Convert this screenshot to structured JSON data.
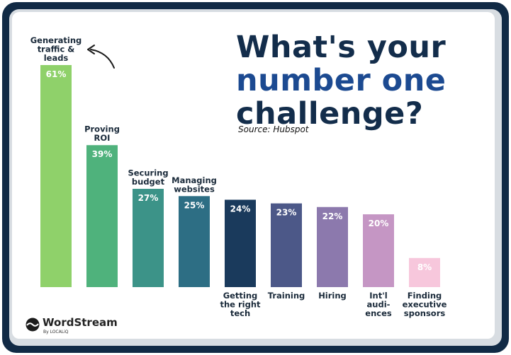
{
  "header": {
    "title_line1": "What's your",
    "title_line2": "number one",
    "title_line3": "challenge?",
    "source": "Source: Hubspot"
  },
  "brand": {
    "name": "WordStream",
    "sub": "By LOCALiQ"
  },
  "colors": {
    "title_dark": "#132d4b",
    "title_blue": "#1c4a91",
    "frame": "#112a45",
    "label_text": "#1a2a3a"
  },
  "chart_data": {
    "type": "bar",
    "title": "What's your number one challenge?",
    "source": "Source: Hubspot",
    "ylim": [
      0,
      61
    ],
    "grid": false,
    "legend": "none",
    "categories": [
      "Generating traffic & leads",
      "Proving ROI",
      "Securing budget",
      "Managing websites",
      "Getting the right tech",
      "Training",
      "Hiring",
      "Int'l audiences",
      "Finding executive sponsors"
    ],
    "label_lines": [
      [
        "Generating",
        "traffic &",
        "leads"
      ],
      [
        "Proving",
        "ROI"
      ],
      [
        "Securing",
        "budget"
      ],
      [
        "Managing",
        "websites"
      ],
      [
        "Getting",
        "the right",
        "tech"
      ],
      [
        "Training"
      ],
      [
        "Hiring"
      ],
      [
        "Int'l",
        "audi-",
        "ences"
      ],
      [
        "Finding",
        "executive",
        "sponsors"
      ]
    ],
    "label_position": [
      "above",
      "above",
      "above",
      "above",
      "below",
      "below",
      "below",
      "below",
      "below"
    ],
    "values": [
      61,
      39,
      27,
      25,
      24,
      23,
      22,
      20,
      8
    ],
    "value_labels": [
      "61%",
      "39%",
      "27%",
      "25%",
      "24%",
      "23%",
      "22%",
      "20%",
      "8%"
    ],
    "bar_colors": [
      "#8fd16a",
      "#4fb27c",
      "#3c9388",
      "#2d6e84",
      "#1a3a5c",
      "#4c5888",
      "#8c79ad",
      "#c596c4",
      "#f7c7dc"
    ],
    "value_label_colors": [
      "#ffffff",
      "#ffffff",
      "#ffffff",
      "#ffffff",
      "#ffffff",
      "#ffffff",
      "#ffffff",
      "#ffffff",
      "#ffffff"
    ]
  }
}
